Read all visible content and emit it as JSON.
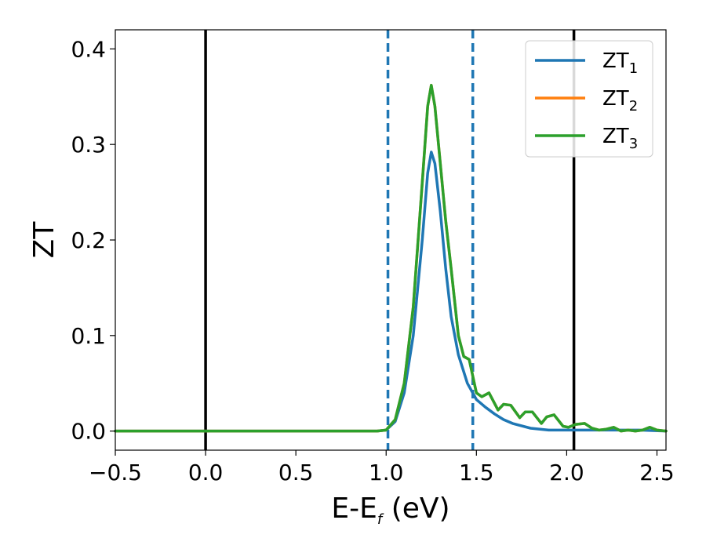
{
  "chart_data": {
    "type": "line",
    "title": "",
    "xlabel": {
      "main": "E-E",
      "sub": "f",
      "suffix": " (eV)"
    },
    "ylabel": "ZT",
    "xlim": [
      -0.5,
      2.55
    ],
    "ylim": [
      -0.02,
      0.42
    ],
    "xticks": [
      -0.5,
      0.0,
      0.5,
      1.0,
      1.5,
      2.0,
      2.5
    ],
    "xtick_labels": [
      "−0.5",
      "0.0",
      "0.5",
      "1.0",
      "1.5",
      "2.0",
      "2.5"
    ],
    "yticks": [
      0.0,
      0.1,
      0.2,
      0.3,
      0.4
    ],
    "ytick_labels": [
      "0.0",
      "0.1",
      "0.2",
      "0.3",
      "0.4"
    ],
    "grid": false,
    "legend_position": "top-right",
    "reference_lines": [
      {
        "x": 0.0,
        "style": "solid",
        "color": "#000000"
      },
      {
        "x": 2.04,
        "style": "solid",
        "color": "#000000"
      },
      {
        "x": 1.01,
        "style": "dashed",
        "color": "#1f77b4"
      },
      {
        "x": 1.48,
        "style": "dashed",
        "color": "#1f77b4"
      }
    ],
    "series": [
      {
        "name": "ZT",
        "sub": "1",
        "color": "#1f77b4",
        "x": [
          -0.5,
          0.95,
          1.0,
          1.05,
          1.1,
          1.15,
          1.2,
          1.23,
          1.25,
          1.27,
          1.3,
          1.33,
          1.36,
          1.4,
          1.45,
          1.5,
          1.55,
          1.6,
          1.65,
          1.7,
          1.8,
          1.9,
          2.0,
          2.1,
          2.2,
          2.3,
          2.4,
          2.55
        ],
        "y": [
          0.0,
          0.0,
          0.001,
          0.01,
          0.04,
          0.1,
          0.2,
          0.27,
          0.292,
          0.28,
          0.23,
          0.17,
          0.12,
          0.08,
          0.05,
          0.033,
          0.025,
          0.018,
          0.012,
          0.008,
          0.003,
          0.001,
          0.001,
          0.001,
          0.001,
          0.001,
          0.001,
          0.0
        ]
      },
      {
        "name": "ZT",
        "sub": "2",
        "color": "#ff7f0e",
        "x": [
          -0.5,
          0.95,
          1.0,
          1.05,
          1.1,
          1.15,
          1.2,
          1.23,
          1.25,
          1.27,
          1.3,
          1.33,
          1.36,
          1.4,
          1.43,
          1.46,
          1.5,
          1.53,
          1.57,
          1.62,
          1.65,
          1.69,
          1.74,
          1.77,
          1.81,
          1.86,
          1.89,
          1.93,
          1.98,
          2.01,
          2.05,
          2.1,
          2.14,
          2.18,
          2.22,
          2.26,
          2.3,
          2.34,
          2.38,
          2.42,
          2.46,
          2.5,
          2.55
        ],
        "y": [
          0.0,
          0.0,
          0.001,
          0.012,
          0.05,
          0.13,
          0.26,
          0.34,
          0.362,
          0.34,
          0.28,
          0.22,
          0.17,
          0.1,
          0.078,
          0.075,
          0.04,
          0.036,
          0.04,
          0.022,
          0.028,
          0.027,
          0.014,
          0.02,
          0.02,
          0.008,
          0.015,
          0.017,
          0.005,
          0.004,
          0.007,
          0.008,
          0.003,
          0.001,
          0.002,
          0.004,
          0.0,
          0.001,
          0.0,
          0.001,
          0.004,
          0.001,
          0.0
        ]
      },
      {
        "name": "ZT",
        "sub": "3",
        "color": "#2ca02c",
        "x": [
          -0.5,
          0.95,
          1.0,
          1.05,
          1.1,
          1.15,
          1.2,
          1.23,
          1.25,
          1.27,
          1.3,
          1.33,
          1.36,
          1.4,
          1.43,
          1.46,
          1.5,
          1.53,
          1.57,
          1.62,
          1.65,
          1.69,
          1.74,
          1.77,
          1.81,
          1.86,
          1.89,
          1.93,
          1.98,
          2.01,
          2.05,
          2.1,
          2.14,
          2.18,
          2.22,
          2.26,
          2.3,
          2.34,
          2.38,
          2.42,
          2.46,
          2.5,
          2.55
        ],
        "y": [
          0.0,
          0.0,
          0.001,
          0.012,
          0.05,
          0.13,
          0.26,
          0.34,
          0.362,
          0.34,
          0.28,
          0.22,
          0.17,
          0.1,
          0.078,
          0.075,
          0.04,
          0.036,
          0.04,
          0.022,
          0.028,
          0.027,
          0.014,
          0.02,
          0.02,
          0.008,
          0.015,
          0.017,
          0.005,
          0.004,
          0.007,
          0.008,
          0.003,
          0.001,
          0.002,
          0.004,
          0.0,
          0.001,
          0.0,
          0.001,
          0.004,
          0.001,
          0.0
        ]
      }
    ]
  }
}
